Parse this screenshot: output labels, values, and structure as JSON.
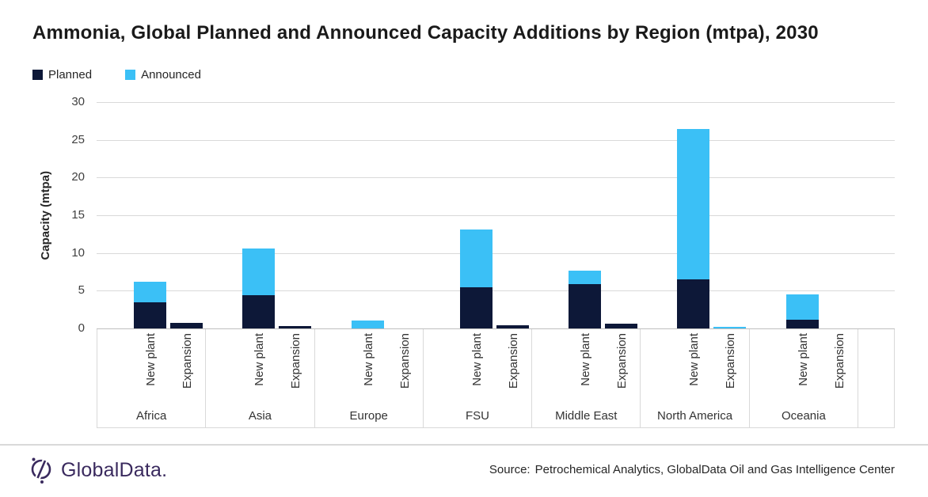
{
  "title": "Ammonia, Global Planned and Announced Capacity Additions by Region (mtpa), 2030",
  "legend": {
    "items": [
      {
        "label": "Planned",
        "color": "#0d1838"
      },
      {
        "label": "Announced",
        "color": "#3bc0f6"
      }
    ]
  },
  "chart_data": {
    "type": "bar",
    "stacked": true,
    "title": "Ammonia, Global Planned and Announced Capacity Additions by Region (mtpa), 2030",
    "xlabel": "",
    "ylabel": "Capacity (mtpa)",
    "ylim": [
      0,
      30
    ],
    "y_ticks": [
      0,
      5,
      10,
      15,
      20,
      25,
      30
    ],
    "grid": "horizontal",
    "legend_position": "top-left",
    "regions": [
      "Africa",
      "Asia",
      "Europe",
      "FSU",
      "Middle East",
      "North America",
      "Oceania"
    ],
    "sub_categories": [
      "New plant",
      "Expansion"
    ],
    "series": [
      {
        "name": "Planned",
        "color": "#0d1838",
        "new_plant": [
          3.5,
          4.4,
          0,
          5.5,
          5.9,
          6.5,
          1.2
        ],
        "expansion": [
          0.7,
          0.3,
          0,
          0.4,
          0.6,
          0,
          0
        ]
      },
      {
        "name": "Announced",
        "color": "#3bc0f6",
        "new_plant": [
          2.7,
          6.2,
          1.1,
          7.6,
          1.8,
          19.9,
          3.3
        ],
        "expansion": [
          0,
          0,
          0,
          0,
          0,
          0.2,
          0
        ]
      }
    ]
  },
  "footer": {
    "logo_text": "GlobalData.",
    "source_label": "Source:",
    "source_text": "Petrochemical Analytics, GlobalData Oil and Gas Intelligence Center",
    "logo_color": "#3a2a5e"
  }
}
